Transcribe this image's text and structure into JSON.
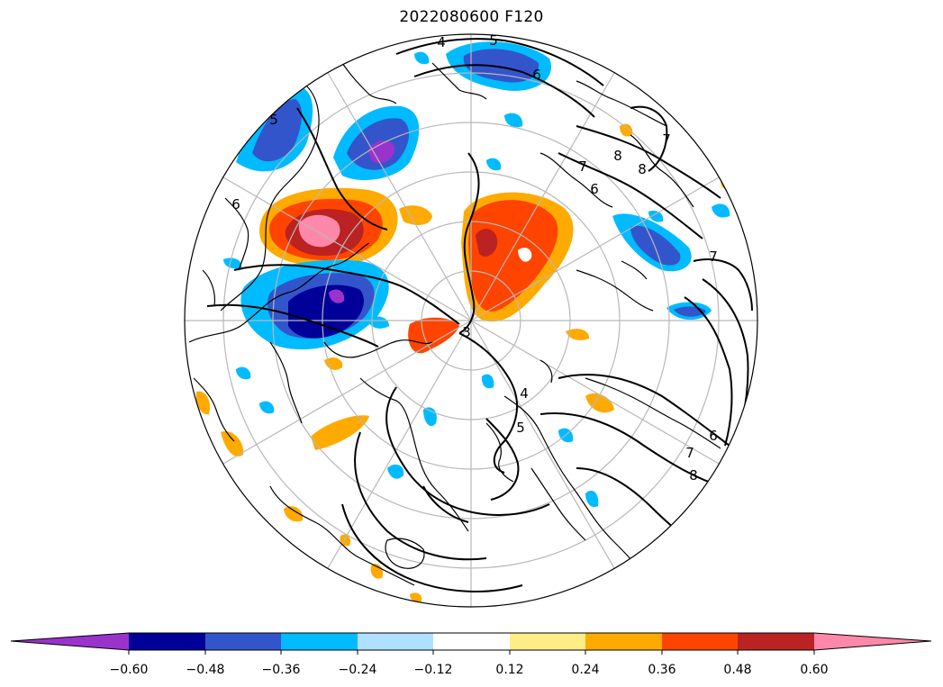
{
  "title": "2022080600 F120",
  "colorbar": {
    "colors": [
      "#9933cc",
      "#000099",
      "#3355cc",
      "#00bbff",
      "#b0e0ff",
      "#ffffff",
      "#ffee88",
      "#ffaa00",
      "#ff4400",
      "#bb2222",
      "#ff88aa"
    ],
    "ticks": [
      "−0.60",
      "−0.48",
      "−0.36",
      "−0.24",
      "−0.12",
      "0.12",
      "0.24",
      "0.36",
      "0.48",
      "0.60"
    ]
  },
  "contour_labels": [
    "4",
    "5",
    "6",
    "7",
    "8",
    "6",
    "7",
    "8",
    "3",
    "4",
    "5",
    "6",
    "7",
    "8",
    "7",
    "6",
    "5"
  ]
}
